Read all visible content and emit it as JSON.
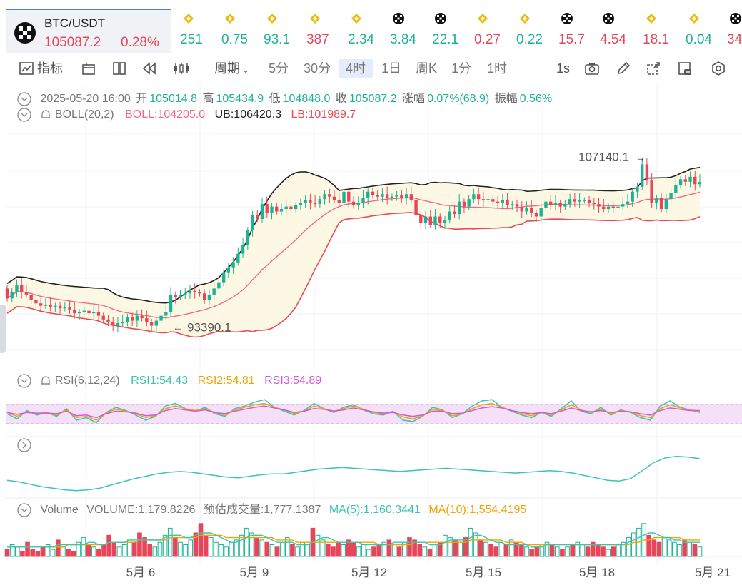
{
  "ticker": {
    "symbol": "BTC/USDT",
    "price": "105087.2",
    "change": "0.28%",
    "items": [
      {
        "icon": "bnb-icon",
        "value": "251",
        "color": "#1bb393"
      },
      {
        "icon": "bnb-icon",
        "value": "0.75",
        "color": "#1bb393"
      },
      {
        "icon": "bnb-icon",
        "value": "93.1",
        "color": "#1bb393"
      },
      {
        "icon": "bnb-icon",
        "value": "387",
        "color": "#e8455a"
      },
      {
        "icon": "bnb-icon",
        "value": "2.34",
        "color": "#1bb393"
      },
      {
        "icon": "btc-icon",
        "value": "3.84",
        "color": "#1bb393"
      },
      {
        "icon": "btc-icon",
        "value": "22.1",
        "color": "#1bb393"
      },
      {
        "icon": "bnb-icon",
        "value": "0.27",
        "color": "#e8455a"
      },
      {
        "icon": "bnb-icon",
        "value": "0.22",
        "color": "#1bb393"
      },
      {
        "icon": "btc-icon",
        "value": "15.7",
        "color": "#e8455a"
      },
      {
        "icon": "btc-icon",
        "value": "4.54",
        "color": "#e8455a"
      },
      {
        "icon": "bnb-icon",
        "value": "18.1",
        "color": "#e8455a"
      },
      {
        "icon": "bnb-icon",
        "value": "0.04",
        "color": "#1bb393"
      },
      {
        "icon": "btc-icon",
        "value": "34",
        "color": "#e8455a"
      }
    ]
  },
  "toolbar": {
    "indicators": "指标",
    "period": "周期",
    "intervals": [
      "5分",
      "30分",
      "4时",
      "1日",
      "周K",
      "1分",
      "1时"
    ],
    "active_interval": "4时",
    "refresh": "1s",
    "icons": [
      "indicator-icon",
      "layout-icon",
      "multi-chart-icon",
      "replay-icon",
      "candle-type-icon",
      "camera-icon",
      "pencil-icon",
      "expand-icon",
      "delete-drawing-icon",
      "settings-icon"
    ]
  },
  "ohlc": {
    "datetime": "2025-05-20 16:00",
    "open_label": "开",
    "open": "105014.8",
    "high_label": "高",
    "high": "105434.9",
    "low_label": "低",
    "low": "104848.0",
    "close_label": "收",
    "close": "105087.2",
    "change_label": "涨幅",
    "change": "0.07%(68.9)",
    "amp_label": "振幅",
    "amp": "0.56%"
  },
  "boll": {
    "name": "BOLL(20,2)",
    "mid": "BOLL:104205.0",
    "ub": "UB:106420.3",
    "lb": "LB:101989.7"
  },
  "rsi": {
    "name": "RSI(6,12,24)",
    "rsi1": "RSI1:54.43",
    "rsi2": "RSI2:54.81",
    "rsi3": "RSI3:54.89"
  },
  "volume": {
    "name": "Volume",
    "volume": "VOLUME:1,179.8226",
    "est": "预估成交量:1,777.1387",
    "ma5": "MA(5):1,160.3441",
    "ma10": "MA(10):1,554.4195"
  },
  "colors": {
    "up": "#1bb393",
    "down": "#e8455a",
    "boll_mid": "#f06a8c",
    "boll_ub": "#222222",
    "boll_lb": "#ea4a52",
    "band_fill": "#fdf8e4",
    "rsi1": "#3cc4b0",
    "rsi2": "#f0a500",
    "rsi3": "#d25ad6",
    "ma5": "#3cc4b0",
    "ma10": "#f0a500",
    "accent": "#3a6de0"
  },
  "chart_data": {
    "type": "candlestick",
    "x_ticks": [
      "5月 6",
      "5月 9",
      "5月 12",
      "5月 15",
      "5月 18",
      "5月 21"
    ],
    "annotations": [
      {
        "label": "107140.1",
        "value": 107140.1,
        "type": "high"
      },
      {
        "label": "93390.1",
        "value": 93390.1,
        "type": "low"
      }
    ],
    "ylim": [
      91000,
      109000
    ],
    "candles": [
      [
        96500,
        95700
      ],
      [
        95700,
        96200
      ],
      [
        96200,
        96800
      ],
      [
        96800,
        96200
      ],
      [
        96200,
        96000
      ],
      [
        96000,
        95600
      ],
      [
        95600,
        95300
      ],
      [
        95300,
        95100
      ],
      [
        95100,
        95200
      ],
      [
        95200,
        95000
      ],
      [
        95000,
        95100
      ],
      [
        95100,
        94900
      ],
      [
        94900,
        95000
      ],
      [
        95000,
        94800
      ],
      [
        94800,
        94500
      ],
      [
        94500,
        94600
      ],
      [
        94600,
        94700
      ],
      [
        94700,
        94500
      ],
      [
        94500,
        94600
      ],
      [
        94600,
        94300
      ],
      [
        94300,
        94000
      ],
      [
        94000,
        93800
      ],
      [
        93800,
        93500
      ],
      [
        93500,
        93700
      ],
      [
        93700,
        93800
      ],
      [
        93800,
        94200
      ],
      [
        94200,
        93900
      ],
      [
        93900,
        94300
      ],
      [
        94300,
        94100
      ],
      [
        94100,
        93800
      ],
      [
        93800,
        93500
      ],
      [
        93500,
        93900
      ],
      [
        93900,
        94300
      ],
      [
        94300,
        94600
      ],
      [
        94600,
        96000
      ],
      [
        96000,
        95800
      ],
      [
        95800,
        96000
      ],
      [
        96000,
        96100
      ],
      [
        96100,
        96300
      ],
      [
        96300,
        96200
      ],
      [
        96200,
        96100
      ],
      [
        96100,
        95600
      ],
      [
        95600,
        96000
      ],
      [
        96000,
        96500
      ],
      [
        96500,
        97000
      ],
      [
        97000,
        97800
      ],
      [
        97800,
        98200
      ],
      [
        98200,
        98600
      ],
      [
        98600,
        99300
      ],
      [
        99300,
        100000
      ],
      [
        100000,
        101200
      ],
      [
        101200,
        102400
      ],
      [
        102400,
        102100
      ],
      [
        102100,
        103300
      ],
      [
        103300,
        102600
      ],
      [
        102600,
        103100
      ],
      [
        103100,
        102700
      ],
      [
        102700,
        102900
      ],
      [
        102900,
        103100
      ],
      [
        103100,
        102900
      ],
      [
        102900,
        103200
      ],
      [
        103200,
        103400
      ],
      [
        103400,
        103600
      ],
      [
        103600,
        103400
      ],
      [
        103400,
        103300
      ],
      [
        103300,
        103700
      ],
      [
        103700,
        104100
      ],
      [
        104100,
        103900
      ],
      [
        103900,
        103600
      ],
      [
        103600,
        103400
      ],
      [
        103400,
        104300
      ],
      [
        104300,
        103500
      ],
      [
        103500,
        103200
      ],
      [
        103200,
        103400
      ],
      [
        103400,
        103800
      ],
      [
        103800,
        104300
      ],
      [
        104300,
        104000
      ],
      [
        104000,
        103900
      ],
      [
        103900,
        104100
      ],
      [
        104100,
        103800
      ],
      [
        103800,
        103900
      ],
      [
        103900,
        104000
      ],
      [
        104000,
        103800
      ],
      [
        103800,
        104100
      ],
      [
        104100,
        103600
      ],
      [
        103600,
        102400
      ],
      [
        102400,
        101800
      ],
      [
        101800,
        102300
      ],
      [
        102300,
        101600
      ],
      [
        101600,
        102300
      ],
      [
        102300,
        101800
      ],
      [
        101800,
        102000
      ],
      [
        102000,
        102700
      ],
      [
        102700,
        102500
      ],
      [
        102500,
        103500
      ],
      [
        103500,
        103100
      ],
      [
        103100,
        103700
      ],
      [
        103700,
        104100
      ],
      [
        104100,
        103700
      ],
      [
        103700,
        103600
      ],
      [
        103600,
        103700
      ],
      [
        103700,
        103500
      ],
      [
        103500,
        103400
      ],
      [
        103400,
        103600
      ],
      [
        103600,
        103200
      ],
      [
        103200,
        103300
      ],
      [
        103300,
        103100
      ],
      [
        103100,
        102700
      ],
      [
        102700,
        103000
      ],
      [
        103000,
        102600
      ],
      [
        102600,
        102300
      ],
      [
        102300,
        103000
      ],
      [
        103000,
        103500
      ],
      [
        103500,
        103200
      ],
      [
        103200,
        103400
      ],
      [
        103400,
        103100
      ],
      [
        103100,
        103300
      ],
      [
        103300,
        103700
      ],
      [
        103700,
        103500
      ],
      [
        103500,
        103600
      ],
      [
        103600,
        103600
      ],
      [
        103600,
        103400
      ],
      [
        103400,
        103300
      ],
      [
        103300,
        103100
      ],
      [
        103100,
        102900
      ],
      [
        102900,
        103100
      ],
      [
        103100,
        103000
      ],
      [
        103000,
        103100
      ],
      [
        103100,
        103300
      ],
      [
        103300,
        103500
      ],
      [
        103500,
        104300
      ],
      [
        104300,
        104700
      ],
      [
        104700,
        106500
      ],
      [
        106500,
        105200
      ],
      [
        105200,
        103400
      ],
      [
        103400,
        103800
      ],
      [
        103800,
        102900
      ],
      [
        102900,
        103700
      ],
      [
        103700,
        104200
      ],
      [
        104200,
        104800
      ],
      [
        104800,
        105300
      ],
      [
        105300,
        105100
      ],
      [
        105100,
        105500
      ],
      [
        105500,
        104900
      ],
      [
        104900,
        105087
      ]
    ],
    "rsi1": [
      50,
      42,
      55,
      48,
      52,
      46,
      58,
      40,
      44,
      36,
      52,
      60,
      55,
      48,
      40,
      46,
      62,
      66,
      58,
      54,
      60,
      50,
      46,
      58,
      62,
      68,
      72,
      60,
      54,
      48,
      55,
      66,
      58,
      52,
      60,
      64,
      56,
      50,
      48,
      54,
      40,
      38,
      46,
      60,
      56,
      44,
      50,
      62,
      70,
      72,
      60,
      54,
      48,
      44,
      52,
      46,
      58,
      70,
      54,
      50,
      60,
      48,
      56,
      52,
      44,
      40,
      62,
      70,
      60,
      56,
      52
    ],
    "rsi2": [
      52,
      46,
      53,
      50,
      52,
      48,
      56,
      44,
      46,
      40,
      51,
      57,
      54,
      50,
      44,
      47,
      58,
      62,
      58,
      55,
      58,
      52,
      48,
      56,
      60,
      64,
      66,
      60,
      56,
      50,
      54,
      62,
      58,
      54,
      58,
      62,
      57,
      52,
      50,
      53,
      45,
      42,
      47,
      57,
      55,
      47,
      50,
      58,
      64,
      66,
      60,
      55,
      50,
      47,
      52,
      48,
      56,
      64,
      56,
      52,
      57,
      50,
      55,
      53,
      47,
      44,
      58,
      64,
      59,
      56,
      54
    ],
    "rsi3": [
      52,
      49,
      52,
      51,
      51,
      50,
      54,
      47,
      48,
      44,
      50,
      54,
      53,
      51,
      47,
      48,
      55,
      58,
      56,
      54,
      56,
      52,
      50,
      54,
      57,
      60,
      62,
      59,
      56,
      52,
      54,
      58,
      57,
      54,
      56,
      59,
      56,
      53,
      51,
      52,
      48,
      46,
      48,
      54,
      54,
      50,
      51,
      55,
      59,
      61,
      59,
      55,
      52,
      50,
      52,
      50,
      54,
      59,
      55,
      53,
      55,
      52,
      54,
      53,
      50,
      48,
      55,
      59,
      57,
      55,
      55
    ],
    "slow_line": [
      40,
      38,
      35,
      32,
      30,
      28,
      27,
      28,
      30,
      34,
      38,
      42,
      45,
      48,
      50,
      51,
      50,
      48,
      46,
      44,
      43,
      45,
      47,
      48,
      48,
      50,
      52,
      54,
      55,
      56,
      55,
      54,
      53,
      52,
      51,
      52,
      53,
      54,
      55,
      54,
      53,
      52,
      51,
      50,
      49,
      50,
      51,
      52,
      51,
      49,
      46,
      43,
      40,
      39,
      42,
      52,
      62,
      68,
      70,
      69,
      67
    ]
  },
  "volume_data": {
    "bars": [
      3,
      5,
      4,
      2,
      6,
      3,
      2,
      4,
      5,
      3,
      7,
      4,
      3,
      2,
      6,
      8,
      5,
      4,
      3,
      5,
      9,
      6,
      4,
      5,
      7,
      6,
      10,
      8,
      5,
      4,
      6,
      9,
      12,
      8,
      6,
      5,
      7,
      10,
      14,
      9,
      8,
      6,
      5,
      4,
      6,
      7,
      9,
      12,
      10,
      8,
      7,
      6,
      5,
      4,
      6,
      8,
      5,
      4,
      6,
      5,
      12,
      9,
      7,
      5,
      4,
      6,
      5,
      7,
      6,
      4,
      5,
      3,
      4,
      5,
      6,
      7,
      5,
      4,
      6,
      8,
      7,
      5,
      4,
      3,
      5,
      6,
      9,
      8,
      7,
      6,
      8,
      12,
      10,
      7,
      6,
      5,
      4,
      6,
      5,
      7,
      6,
      5,
      4,
      3,
      4,
      5,
      6,
      5,
      4,
      3,
      4,
      5,
      6,
      5,
      4,
      6,
      5,
      4,
      3,
      4,
      5,
      6,
      8,
      10,
      12,
      14,
      9,
      7,
      6,
      8,
      7,
      6,
      5,
      7,
      6,
      5,
      4
    ],
    "ma5": [
      4,
      4,
      4,
      4,
      4,
      4,
      4,
      4,
      4,
      4,
      5,
      5,
      5,
      5,
      5,
      5,
      6,
      6,
      5,
      5,
      6,
      6,
      6,
      6,
      7,
      7,
      7,
      7,
      7,
      7,
      7,
      8,
      9,
      9,
      9,
      8,
      8,
      9,
      10,
      10,
      10,
      9,
      8,
      7,
      6,
      6,
      7,
      8,
      9,
      9,
      9,
      8,
      7,
      6,
      6,
      6,
      6,
      5,
      5,
      5,
      6,
      7,
      8,
      8,
      7,
      6,
      6,
      6,
      6,
      6,
      5,
      5,
      5,
      5,
      5,
      5,
      6,
      6,
      6,
      6,
      6,
      6,
      6,
      5,
      5,
      5,
      6,
      7,
      7,
      7,
      7,
      8,
      9,
      9,
      8,
      7,
      6,
      6,
      5,
      5,
      5,
      5,
      5,
      4,
      4,
      4,
      5,
      5,
      5,
      5,
      5,
      5,
      5,
      5,
      5,
      5,
      5,
      5,
      5,
      5,
      5,
      5,
      6,
      7,
      8,
      9,
      10,
      10,
      9,
      8,
      8,
      7,
      7,
      6,
      6,
      6,
      6
    ],
    "ma10": [
      4,
      4,
      4,
      4,
      4,
      4,
      4,
      4,
      4,
      4,
      4,
      4,
      5,
      5,
      5,
      5,
      5,
      5,
      5,
      5,
      6,
      6,
      6,
      6,
      6,
      6,
      7,
      7,
      7,
      7,
      7,
      7,
      8,
      8,
      8,
      8,
      8,
      8,
      9,
      9,
      9,
      9,
      9,
      8,
      8,
      8,
      8,
      8,
      8,
      8,
      8,
      8,
      8,
      7,
      7,
      7,
      7,
      6,
      6,
      6,
      6,
      6,
      6,
      6,
      6,
      6,
      6,
      6,
      6,
      6,
      6,
      6,
      6,
      5,
      5,
      5,
      5,
      5,
      5,
      5,
      6,
      6,
      6,
      6,
      6,
      6,
      6,
      6,
      6,
      6,
      6,
      7,
      7,
      7,
      7,
      7,
      7,
      7,
      6,
      6,
      6,
      6,
      5,
      5,
      5,
      5,
      5,
      5,
      5,
      5,
      5,
      5,
      5,
      5,
      5,
      5,
      5,
      5,
      5,
      5,
      5,
      5,
      5,
      6,
      6,
      7,
      7,
      8,
      8,
      8,
      8,
      8,
      8,
      7,
      7,
      7,
      7
    ]
  }
}
